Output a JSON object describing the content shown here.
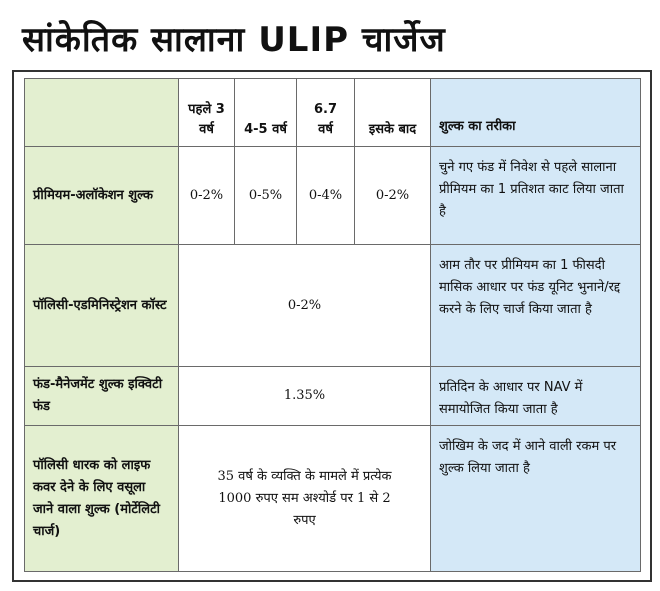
{
  "title": "सांकेतिक सालाना ULIP चार्जेज",
  "table": {
    "headers": {
      "col1": "पहले 3 वर्ष",
      "col2": "4-5 वर्ष",
      "col3": "6.7 वर्ष",
      "col4": "इसके बाद",
      "method": "शुल्क का तरीका"
    },
    "rows": [
      {
        "label": "प्रीमियम-अलॉकेशन शुल्क",
        "values": [
          "0-2%",
          "0-5%",
          "0-4%",
          "0-2%"
        ],
        "method": "चुने गए फंड में निवेश से पहले सालाना प्रीमियम का 1 प्रतिशत काट लिया जाता है"
      },
      {
        "label": "पॉलिसी-एडमिनिस्ट्रेशन कॉस्ट",
        "value": "0-2%",
        "method": "आम तौर पर प्रीमियम का 1 फीसदी मासिक आधार पर फंड यूनिट भुनाने/रद्द करने के लिए चार्ज किया जाता है"
      },
      {
        "label": "फंड-मैनेजमेंट शुल्क इक्विटी फंड",
        "value": "1.35%",
        "method": "प्रतिदिन के आधार पर NAV में समायोजित किया जाता है"
      },
      {
        "label": "पॉलिसी धारक को लाइफ कवर देने के लिए वसूला जाने वाला शुल्क (मोर्टेलिटी चार्ज)",
        "value": "35 वर्ष के व्यक्ति के मामले में प्रत्येक 1000 रुपए सम अश्योर्ड पर 1 से 2 रुपए",
        "method": "जोखिम के जद में आने वाली रकम पर शुल्क लिया जाता है"
      }
    ]
  },
  "colors": {
    "label_column": "#e3efd0",
    "method_column": "#d4e8f7",
    "border": "#6a6a6a"
  }
}
